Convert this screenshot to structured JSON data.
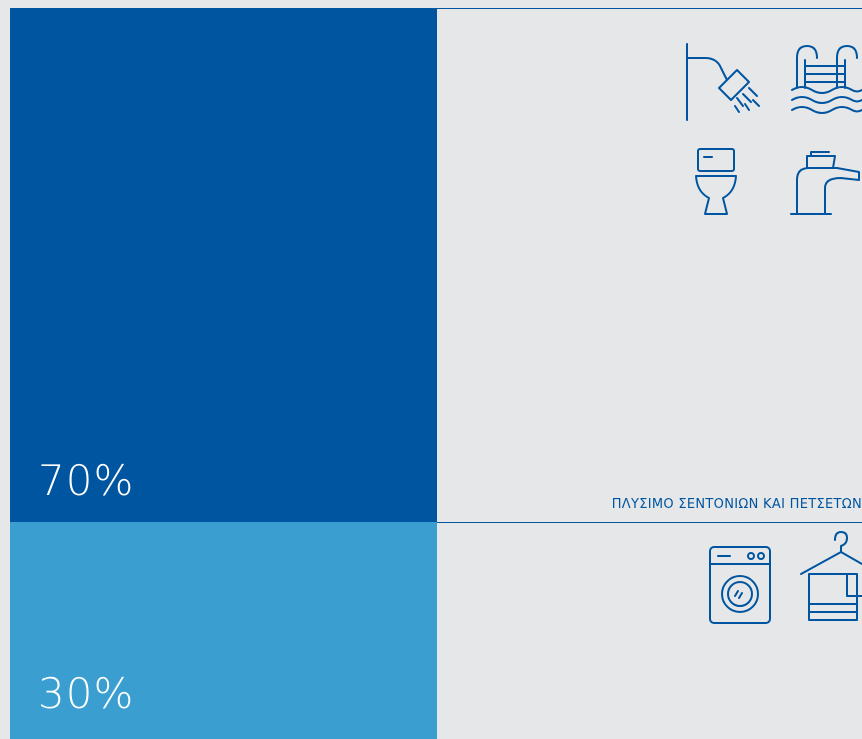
{
  "blocks": [
    {
      "label": "70%"
    },
    {
      "label": "30%"
    }
  ],
  "caption": "ΠΛΥΣΙΜΟ ΣΕΝΤΟΝΙΩΝ ΚΑΙ ΠΕΤΣΕΤΩΝ"
}
